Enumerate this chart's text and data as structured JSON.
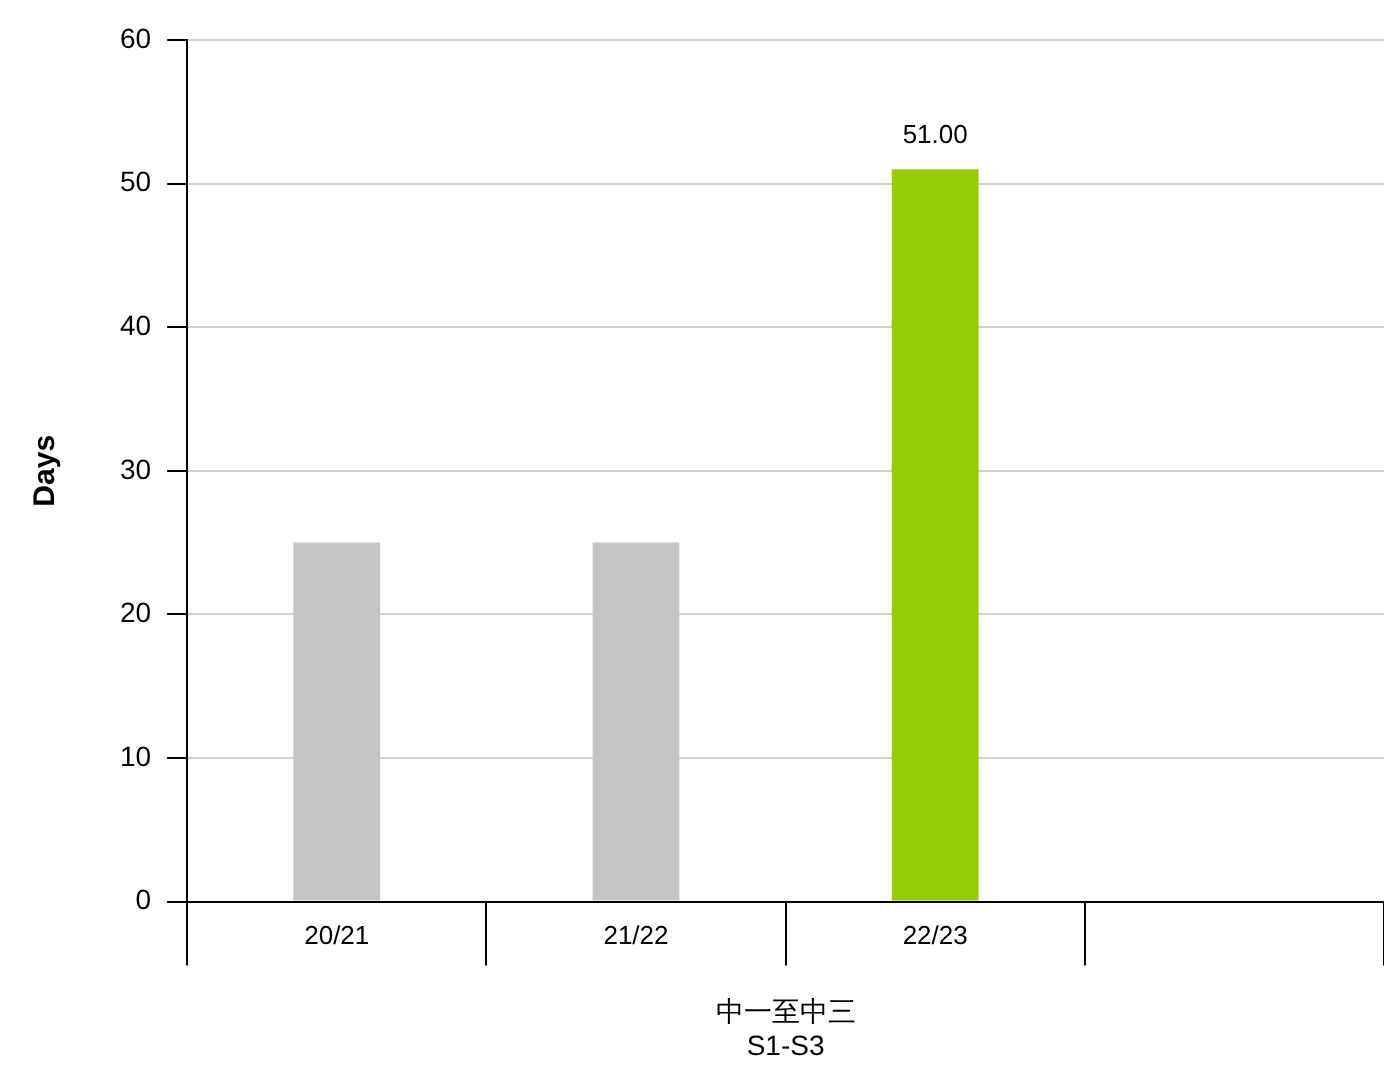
{
  "chart_data": {
    "type": "bar",
    "xlabel": "中一至中三\nS1-S3",
    "ylabel": "Days",
    "categories": [
      "20/21",
      "21/22",
      "22/23",
      null
    ],
    "values": [
      25,
      25,
      51,
      null
    ],
    "colors": [
      "#c4c4c4",
      "#c4c4c4",
      "#99cc00",
      "#c4c4c4"
    ],
    "value_labels": [
      null,
      null,
      "51.00",
      null
    ],
    "ylim": [
      0,
      60
    ],
    "yticks": [
      0,
      10,
      20,
      30,
      40,
      50,
      60
    ],
    "grid": "y",
    "legend": false
  }
}
